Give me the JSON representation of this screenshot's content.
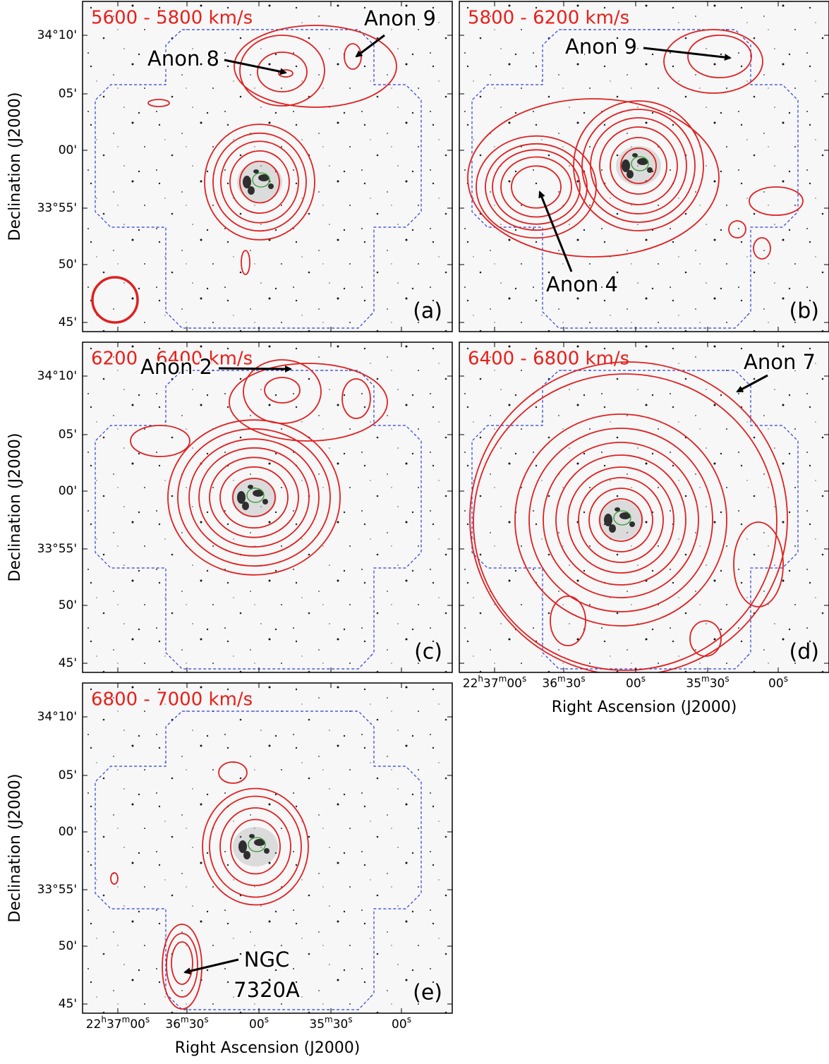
{
  "axes": {
    "y_label": "Declination (J2000)",
    "x_label": "Right Ascension (J2000)",
    "dec_ticks": [
      "34°10'",
      "05'",
      "00'",
      "33°55'",
      "50'",
      "45'"
    ],
    "ra_ticks": [
      [
        "22",
        "h",
        "37",
        "m",
        "00",
        "s"
      ],
      [
        "36",
        "m",
        "30",
        "s"
      ],
      [
        "00",
        "s"
      ],
      [
        "35",
        "m",
        "30",
        "s"
      ],
      [
        "00",
        "s"
      ]
    ]
  },
  "panels": [
    {
      "velocity_range": "5600 - 5800 km/s",
      "label": "(a)",
      "annotations": [
        {
          "lines": [
            "Anon 8"
          ]
        },
        {
          "lines": [
            "Anon 9"
          ]
        }
      ]
    },
    {
      "velocity_range": "5800 - 6200 km/s",
      "label": "(b)",
      "annotations": [
        {
          "lines": [
            "Anon 9"
          ]
        },
        {
          "lines": [
            "Anon 4"
          ]
        }
      ]
    },
    {
      "velocity_range": "6200 - 6400 km/s",
      "label": "(c)",
      "annotations": [
        {
          "lines": [
            "Anon 2"
          ]
        }
      ]
    },
    {
      "velocity_range": "6400 - 6800 km/s",
      "label": "(d)",
      "annotations": [
        {
          "lines": [
            "Anon 7"
          ]
        }
      ]
    },
    {
      "velocity_range": "6800 - 7000 km/s",
      "label": "(e)",
      "annotations": [
        {
          "lines": [
            "NGC",
            "7320A"
          ]
        }
      ]
    }
  ]
}
